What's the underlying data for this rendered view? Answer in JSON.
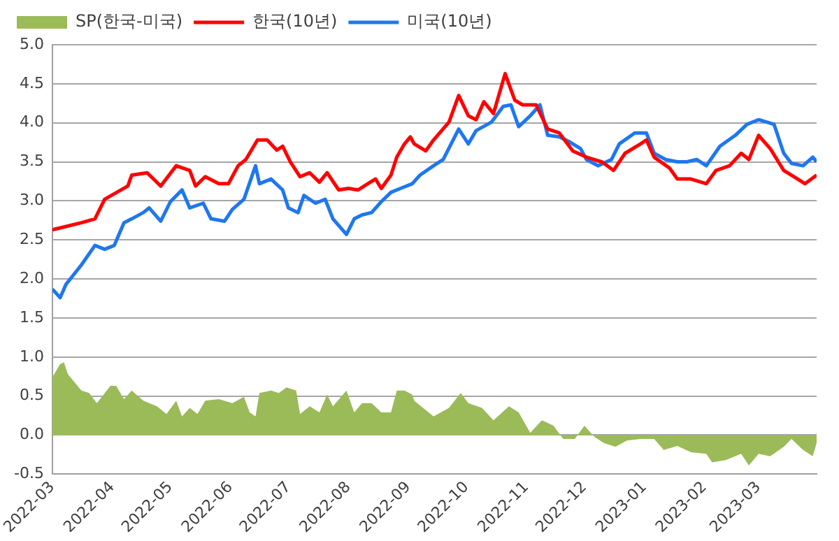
{
  "chart_data": {
    "type": "line",
    "legend": "top left",
    "grid": "y",
    "xlim": [
      "2022-03-01",
      "2023-03-31"
    ],
    "xticks": [
      "2022-03",
      "2022-04",
      "2022-05",
      "2022-06",
      "2022-07",
      "2022-08",
      "2022-09",
      "2022-10",
      "2022-11",
      "2022-12",
      "2023-01",
      "2023-02",
      "2023-03"
    ],
    "ylim": [
      -0.5,
      5
    ],
    "yticks": [
      {
        "value": -0.5,
        "label": "-0.5"
      },
      {
        "value": 0,
        "label": "0.0"
      },
      {
        "value": 0.5,
        "label": "0.5"
      },
      {
        "value": 1,
        "label": "1.0"
      },
      {
        "value": 1.5,
        "label": "1.5"
      },
      {
        "value": 2,
        "label": "2.0"
      },
      {
        "value": 2.5,
        "label": "2.5"
      },
      {
        "value": 3,
        "label": "3.0"
      },
      {
        "value": 3.5,
        "label": "3.5"
      },
      {
        "value": 4,
        "label": "4.0"
      },
      {
        "value": 4.5,
        "label": "4.5"
      },
      {
        "value": 5,
        "label": "5.0"
      }
    ],
    "series": [
      {
        "name": "SP(한국-미국)",
        "type": "area",
        "color": "#9bbb59",
        "x": [
          "2022-03-01",
          "2022-03-05",
          "2022-03-07",
          "2022-03-09",
          "2022-03-16",
          "2022-03-20",
          "2022-03-24",
          "2022-03-31",
          "2022-04-03",
          "2022-04-07",
          "2022-04-11",
          "2022-04-17",
          "2022-04-24",
          "2022-04-29",
          "2022-05-04",
          "2022-05-07",
          "2022-05-11",
          "2022-05-15",
          "2022-05-19",
          "2022-05-26",
          "2022-06-02",
          "2022-06-08",
          "2022-06-11",
          "2022-06-14",
          "2022-06-16",
          "2022-06-22",
          "2022-06-26",
          "2022-06-30",
          "2022-07-05",
          "2022-07-07",
          "2022-07-12",
          "2022-07-17",
          "2022-07-21",
          "2022-07-24",
          "2022-07-31",
          "2022-08-04",
          "2022-08-08",
          "2022-08-13",
          "2022-08-18",
          "2022-08-23",
          "2022-08-26",
          "2022-08-30",
          "2022-09-03",
          "2022-09-04",
          "2022-09-14",
          "2022-09-22",
          "2022-09-28",
          "2022-10-02",
          "2022-10-09",
          "2022-10-15",
          "2022-10-23",
          "2022-10-28",
          "2022-11-03",
          "2022-11-09",
          "2022-11-15",
          "2022-11-20",
          "2022-11-26",
          "2022-12-01",
          "2022-12-06",
          "2022-12-11",
          "2022-12-17",
          "2022-12-23",
          "2022-12-30",
          "2023-01-06",
          "2023-01-11",
          "2023-01-18",
          "2023-01-25",
          "2023-02-02",
          "2023-02-05",
          "2023-02-12",
          "2023-02-20",
          "2023-02-24",
          "2023-03-01",
          "2023-03-07",
          "2023-03-14",
          "2023-03-18",
          "2023-03-24",
          "2023-03-29",
          "2023-03-31"
        ],
        "values": [
          0.74,
          0.91,
          0.93,
          0.78,
          0.57,
          0.54,
          0.41,
          0.63,
          0.63,
          0.46,
          0.57,
          0.44,
          0.37,
          0.27,
          0.44,
          0.24,
          0.35,
          0.27,
          0.44,
          0.46,
          0.41,
          0.49,
          0.29,
          0.24,
          0.54,
          0.57,
          0.54,
          0.61,
          0.57,
          0.27,
          0.37,
          0.29,
          0.52,
          0.37,
          0.57,
          0.29,
          0.41,
          0.41,
          0.29,
          0.29,
          0.57,
          0.57,
          0.52,
          0.44,
          0.24,
          0.35,
          0.54,
          0.41,
          0.35,
          0.19,
          0.37,
          0.29,
          0.03,
          0.19,
          0.12,
          -0.05,
          -0.05,
          0.12,
          -0.02,
          -0.1,
          -0.15,
          -0.07,
          -0.05,
          -0.05,
          -0.19,
          -0.14,
          -0.22,
          -0.24,
          -0.35,
          -0.32,
          -0.24,
          -0.39,
          -0.24,
          -0.27,
          -0.15,
          -0.05,
          -0.19,
          -0.27,
          -0.1
        ]
      },
      {
        "name": "한국(10년)",
        "type": "line",
        "color": "#ff0000",
        "x": [
          "2022-03-01",
          "2022-03-16",
          "2022-03-23",
          "2022-03-28",
          "2022-04-09",
          "2022-04-11",
          "2022-04-19",
          "2022-04-26",
          "2022-05-04",
          "2022-05-11",
          "2022-05-14",
          "2022-05-19",
          "2022-05-26",
          "2022-05-31",
          "2022-06-05",
          "2022-06-09",
          "2022-06-15",
          "2022-06-20",
          "2022-06-25",
          "2022-06-28",
          "2022-07-02",
          "2022-07-07",
          "2022-07-12",
          "2022-07-17",
          "2022-07-21",
          "2022-07-27",
          "2022-08-01",
          "2022-08-06",
          "2022-08-11",
          "2022-08-15",
          "2022-08-18",
          "2022-08-23",
          "2022-08-26",
          "2022-08-30",
          "2022-09-02",
          "2022-09-04",
          "2022-09-10",
          "2022-09-14",
          "2022-09-22",
          "2022-09-27",
          "2022-10-02",
          "2022-10-06",
          "2022-10-10",
          "2022-10-15",
          "2022-10-21",
          "2022-10-26",
          "2022-10-30",
          "2022-11-06",
          "2022-11-12",
          "2022-11-18",
          "2022-11-25",
          "2022-12-02",
          "2022-12-10",
          "2022-12-16",
          "2022-12-22",
          "2022-12-30",
          "2023-01-02",
          "2023-01-06",
          "2023-01-14",
          "2023-01-18",
          "2023-01-25",
          "2023-02-02",
          "2023-02-07",
          "2023-02-14",
          "2023-02-20",
          "2023-02-24",
          "2023-03-01",
          "2023-03-07",
          "2023-03-14",
          "2023-03-18",
          "2023-03-25",
          "2023-03-31"
        ],
        "values": [
          2.63,
          2.72,
          2.77,
          3.02,
          3.19,
          3.33,
          3.36,
          3.19,
          3.45,
          3.39,
          3.19,
          3.31,
          3.22,
          3.22,
          3.45,
          3.53,
          3.78,
          3.78,
          3.65,
          3.7,
          3.5,
          3.31,
          3.36,
          3.24,
          3.36,
          3.14,
          3.16,
          3.14,
          3.22,
          3.28,
          3.16,
          3.33,
          3.56,
          3.73,
          3.82,
          3.73,
          3.64,
          3.78,
          4.01,
          4.35,
          4.09,
          4.04,
          4.27,
          4.12,
          4.63,
          4.29,
          4.23,
          4.23,
          3.92,
          3.87,
          3.64,
          3.56,
          3.5,
          3.39,
          3.61,
          3.73,
          3.78,
          3.56,
          3.42,
          3.28,
          3.28,
          3.22,
          3.39,
          3.45,
          3.61,
          3.53,
          3.84,
          3.67,
          3.39,
          3.33,
          3.22,
          3.33
        ]
      },
      {
        "name": "미국(10년)",
        "type": "line",
        "color": "#1f77f0",
        "x": [
          "2022-03-01",
          "2022-03-05",
          "2022-03-08",
          "2022-03-16",
          "2022-03-23",
          "2022-03-28",
          "2022-04-02",
          "2022-04-07",
          "2022-04-11",
          "2022-04-17",
          "2022-04-20",
          "2022-04-26",
          "2022-05-01",
          "2022-05-07",
          "2022-05-11",
          "2022-05-18",
          "2022-05-22",
          "2022-05-29",
          "2022-06-02",
          "2022-06-08",
          "2022-06-14",
          "2022-06-16",
          "2022-06-22",
          "2022-06-28",
          "2022-07-01",
          "2022-07-06",
          "2022-07-09",
          "2022-07-15",
          "2022-07-20",
          "2022-07-24",
          "2022-07-31",
          "2022-08-04",
          "2022-08-08",
          "2022-08-13",
          "2022-08-18",
          "2022-08-23",
          "2022-08-28",
          "2022-09-03",
          "2022-09-07",
          "2022-09-14",
          "2022-09-19",
          "2022-09-27",
          "2022-10-02",
          "2022-10-06",
          "2022-10-14",
          "2022-10-20",
          "2022-10-24",
          "2022-10-28",
          "2022-11-03",
          "2022-11-08",
          "2022-11-12",
          "2022-11-18",
          "2022-11-23",
          "2022-11-29",
          "2022-12-02",
          "2022-12-08",
          "2022-12-15",
          "2022-12-19",
          "2022-12-27",
          "2023-01-02",
          "2023-01-06",
          "2023-01-12",
          "2023-01-18",
          "2023-01-23",
          "2023-01-28",
          "2023-02-02",
          "2023-02-09",
          "2023-02-17",
          "2023-02-23",
          "2023-03-01",
          "2023-03-09",
          "2023-03-14",
          "2023-03-18",
          "2023-03-24",
          "2023-03-29",
          "2023-03-31"
        ],
        "values": [
          1.87,
          1.76,
          1.93,
          2.18,
          2.43,
          2.38,
          2.43,
          2.72,
          2.77,
          2.85,
          2.91,
          2.74,
          2.99,
          3.14,
          2.91,
          2.97,
          2.77,
          2.74,
          2.89,
          3.02,
          3.45,
          3.22,
          3.28,
          3.14,
          2.91,
          2.85,
          3.07,
          2.97,
          3.02,
          2.77,
          2.57,
          2.77,
          2.82,
          2.85,
          2.99,
          3.11,
          3.16,
          3.22,
          3.33,
          3.45,
          3.53,
          3.92,
          3.73,
          3.9,
          4.01,
          4.21,
          4.23,
          3.95,
          4.09,
          4.23,
          3.84,
          3.82,
          3.76,
          3.67,
          3.53,
          3.45,
          3.53,
          3.73,
          3.87,
          3.87,
          3.61,
          3.53,
          3.5,
          3.5,
          3.53,
          3.45,
          3.7,
          3.84,
          3.98,
          4.04,
          3.98,
          3.61,
          3.48,
          3.45,
          3.56,
          3.5
        ]
      }
    ]
  }
}
